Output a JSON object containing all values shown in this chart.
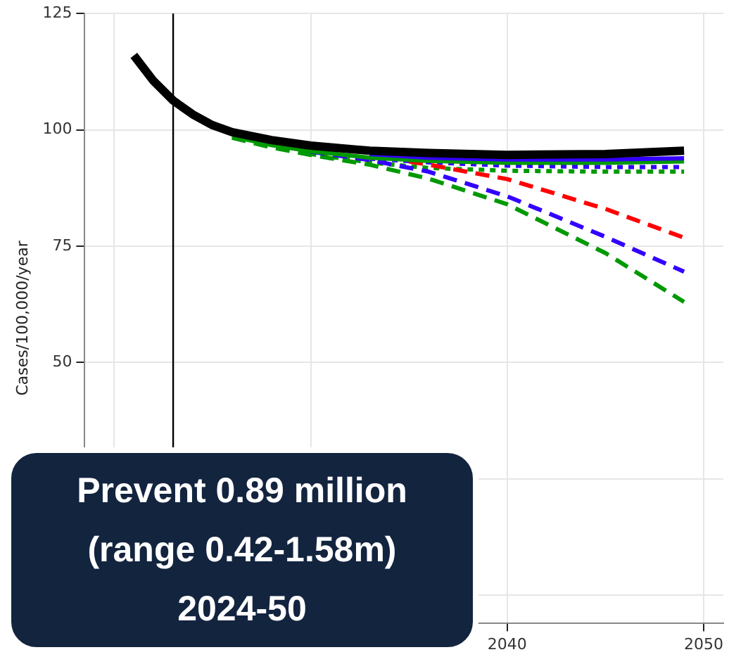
{
  "chart_data": {
    "type": "line",
    "ylabel": "Cases/100,000/year",
    "xlim": [
      2018.5,
      2051
    ],
    "xticks": [
      {
        "value": 2020,
        "label": null
      },
      {
        "value": 2030,
        "label": null
      },
      2040,
      2050
    ],
    "ylim": [
      -6,
      125
    ],
    "yticks": [
      {
        "value": 0,
        "label": null
      },
      {
        "value": 25,
        "label": null
      },
      50,
      75,
      100,
      125
    ],
    "grid": true,
    "marker": "none",
    "ref_lines": [
      {
        "axis": "x",
        "value": 2023,
        "color": "#000000"
      }
    ],
    "annotations": [
      "Prevent 0.89 million\n(range 0.42-1.58m)\n2024-50"
    ],
    "series": [
      {
        "color": "#000000",
        "line_style": "solid",
        "x": [
          2021,
          2022,
          2023,
          2024,
          2025,
          2026,
          2028,
          2030,
          2033,
          2036,
          2040,
          2045,
          2049
        ],
        "values": [
          116,
          110.5,
          106.3,
          103.3,
          101,
          99.5,
          97.8,
          96.6,
          95.5,
          95,
          94.6,
          94.8,
          95.5
        ]
      },
      {
        "color": "#3300ff",
        "line_style": "solid",
        "x": [
          2033,
          2036,
          2040,
          2045,
          2049
        ],
        "values": [
          94.8,
          94,
          93.6,
          93.6,
          93.9
        ]
      },
      {
        "color": "#009900",
        "line_style": "solid",
        "x": [
          2026,
          2028,
          2030,
          2033,
          2036,
          2040,
          2045,
          2049
        ],
        "values": [
          98.6,
          96.7,
          95.4,
          94,
          93.3,
          92.9,
          92.9,
          93.2
        ]
      },
      {
        "color": "#ff0000",
        "line_style": "dashed",
        "x": [
          2035,
          2036,
          2040,
          2045,
          2049
        ],
        "values": [
          93.2,
          92.5,
          89.4,
          83,
          76.8
        ]
      },
      {
        "color": "#3300ff",
        "line_style": "dashed",
        "x": [
          2030,
          2033,
          2036,
          2040,
          2045,
          2049
        ],
        "values": [
          95.3,
          93.5,
          91,
          85.7,
          77,
          69.5
        ]
      },
      {
        "color": "#009900",
        "line_style": "dashed",
        "x": [
          2026,
          2028,
          2030,
          2033,
          2036,
          2040,
          2045,
          2049
        ],
        "values": [
          98.3,
          96.2,
          94.6,
          92.5,
          89.5,
          84,
          73.5,
          63
        ]
      },
      {
        "color": "#3300ff",
        "line_style": "dotted",
        "x": [
          2033,
          2036,
          2040,
          2045,
          2049
        ],
        "values": [
          93.8,
          93,
          92.3,
          92,
          92
        ]
      },
      {
        "color": "#009900",
        "line_style": "dotted",
        "x": [
          2030,
          2033,
          2036,
          2040,
          2045,
          2049
        ],
        "values": [
          94.8,
          93,
          91.8,
          91.2,
          91,
          91
        ]
      }
    ]
  }
}
